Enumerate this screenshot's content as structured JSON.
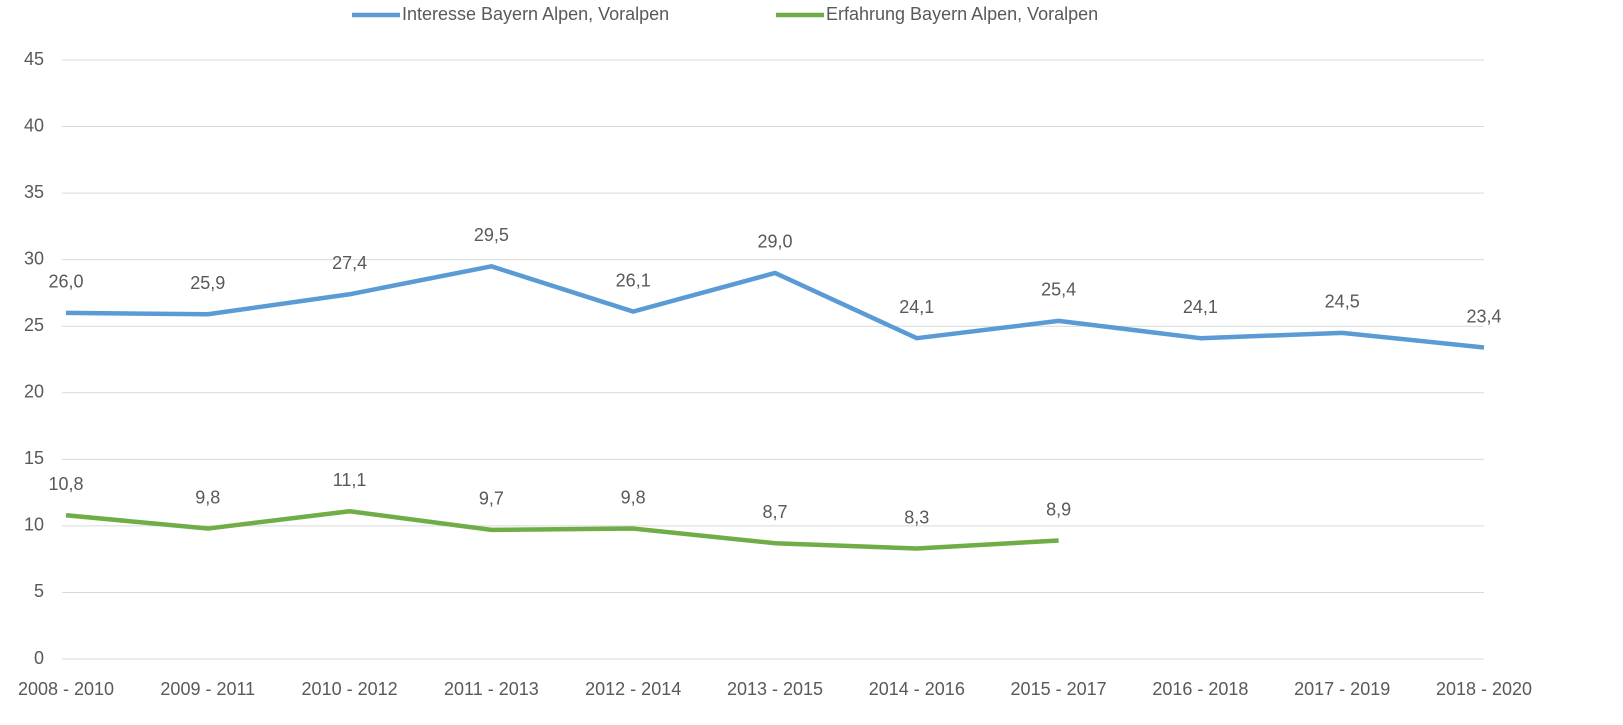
{
  "chart_data": {
    "type": "line",
    "categories": [
      "2008 - 2010",
      "2009 - 2011",
      "2010 - 2012",
      "2011 - 2013",
      "2012 - 2014",
      "2013 - 2015",
      "2014 - 2016",
      "2015 - 2017",
      "2016 - 2018",
      "2017 - 2019",
      "2018 - 2020"
    ],
    "series": [
      {
        "name": "Interesse Bayern Alpen, Voralpen",
        "color": "#5b9bd5",
        "values": [
          26.0,
          25.9,
          27.4,
          29.5,
          26.1,
          29.0,
          24.1,
          25.4,
          24.1,
          24.5,
          23.4
        ],
        "value_labels": [
          "26,0",
          "25,9",
          "27,4",
          "29,5",
          "26,1",
          "29,0",
          "24,1",
          "25,4",
          "24,1",
          "24,5",
          "23,4"
        ]
      },
      {
        "name": "Erfahrung Bayern Alpen, Voralpen",
        "color": "#70ad47",
        "values": [
          10.8,
          9.8,
          11.1,
          9.7,
          9.8,
          8.7,
          8.3,
          8.9,
          null,
          null,
          null
        ],
        "value_labels": [
          "10,8",
          "9,8",
          "11,1",
          "9,7",
          "9,8",
          "8,7",
          "8,3",
          "8,9",
          null,
          null,
          null
        ]
      }
    ],
    "ylim": [
      0,
      45
    ],
    "yticks": [
      0,
      5,
      10,
      15,
      20,
      25,
      30,
      35,
      40,
      45
    ],
    "grid": true,
    "legend": "top"
  }
}
